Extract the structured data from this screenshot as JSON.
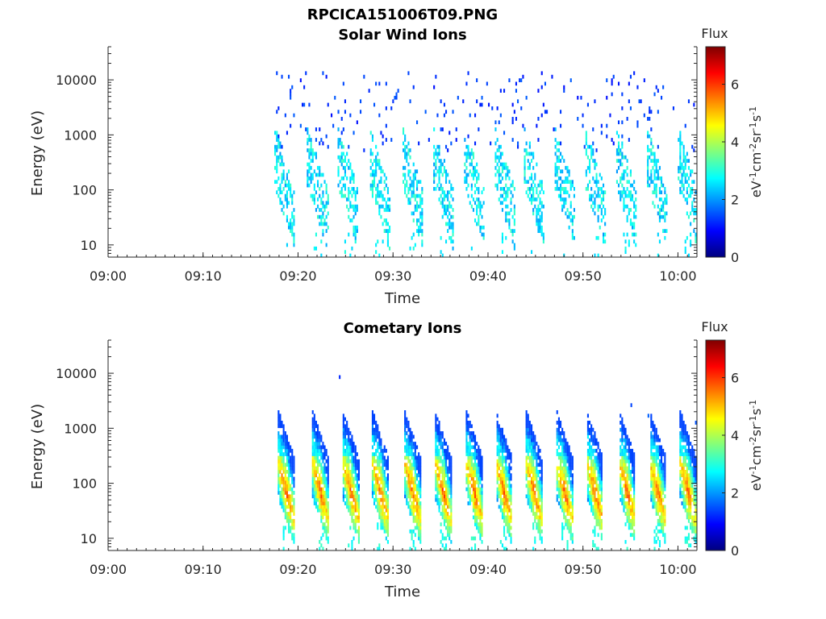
{
  "title": "RPCICA151006T09.PNG",
  "colors": {
    "background": "#ffffff",
    "axis": "#262626",
    "colormap": [
      "#00007f",
      "#0000ff",
      "#007fff",
      "#00ffff",
      "#7fff7f",
      "#ffff00",
      "#ff7f00",
      "#ff0000",
      "#7f0000"
    ]
  },
  "chart_data": [
    {
      "type": "heatmap",
      "title": "Solar Wind Ions",
      "xlabel": "Time",
      "ylabel": "Energy (eV)",
      "x_ticks": [
        "09:00",
        "09:10",
        "09:20",
        "09:30",
        "09:40",
        "09:50",
        "10:00"
      ],
      "x_range": [
        "09:00",
        "10:02"
      ],
      "y_scale": "log",
      "y_range": [
        6,
        40000
      ],
      "y_ticks": [
        10,
        100,
        1000,
        10000
      ],
      "y_tick_labels": [
        "10",
        "100",
        "1000",
        "10000"
      ],
      "colorbar": {
        "title": "Flux",
        "label": "eV-1cm-2sr-1s-1",
        "range": [
          0,
          7.3
        ],
        "ticks": [
          0,
          2,
          4,
          6
        ],
        "tick_labels": [
          "0",
          "2",
          "4",
          "6"
        ]
      },
      "data_start": "09:17.5",
      "sweep_times": [
        "09:18.5",
        "09:22.0",
        "09:25.2",
        "09:28.5",
        "09:32.0",
        "09:35.2",
        "09:38.5",
        "09:41.7",
        "09:44.8",
        "09:48.0",
        "09:51.2",
        "09:54.5",
        "09:57.7",
        "10:01.0"
      ],
      "core_energy_range_eV": [
        30,
        400
      ],
      "core_flux_range": [
        2.0,
        3.2
      ],
      "sparse_energy_range_eV": [
        500,
        14000
      ],
      "sparse_flux_range": [
        1.0,
        1.6
      ]
    },
    {
      "type": "heatmap",
      "title": "Cometary Ions",
      "xlabel": "Time",
      "ylabel": "Energy (eV)",
      "x_ticks": [
        "09:00",
        "09:10",
        "09:20",
        "09:30",
        "09:40",
        "09:50",
        "10:00"
      ],
      "x_range": [
        "09:00",
        "10:02"
      ],
      "y_scale": "log",
      "y_range": [
        6,
        40000
      ],
      "y_ticks": [
        10,
        100,
        1000,
        10000
      ],
      "y_tick_labels": [
        "10",
        "100",
        "1000",
        "10000"
      ],
      "colorbar": {
        "title": "Flux",
        "label": "eV-1cm-2sr-1s-1",
        "range": [
          0,
          7.3
        ],
        "ticks": [
          0,
          2,
          4,
          6
        ],
        "tick_labels": [
          "0",
          "2",
          "4",
          "6"
        ]
      },
      "data_start": "09:17.5",
      "sweep_times": [
        "09:18.7",
        "09:22.3",
        "09:25.5",
        "09:28.6",
        "09:32.0",
        "09:35.2",
        "09:38.5",
        "09:41.6",
        "09:44.8",
        "09:48.0",
        "09:51.2",
        "09:54.6",
        "09:57.8",
        "10:01.0"
      ],
      "core_energy_range_eV": [
        20,
        800
      ],
      "peak_energy_eV": 70,
      "peak_flux": 5.8,
      "min_flux": 2.2,
      "outliers": [
        {
          "time": "09:24.3",
          "energy": 9000,
          "flux": 1.2
        },
        {
          "time": "09:55.0",
          "energy": 2500,
          "flux": 1.4
        },
        {
          "time": "09:56.8",
          "energy": 1800,
          "flux": 1.6
        },
        {
          "time": "10:01.8",
          "energy": 1300,
          "flux": 1.5
        }
      ]
    }
  ]
}
